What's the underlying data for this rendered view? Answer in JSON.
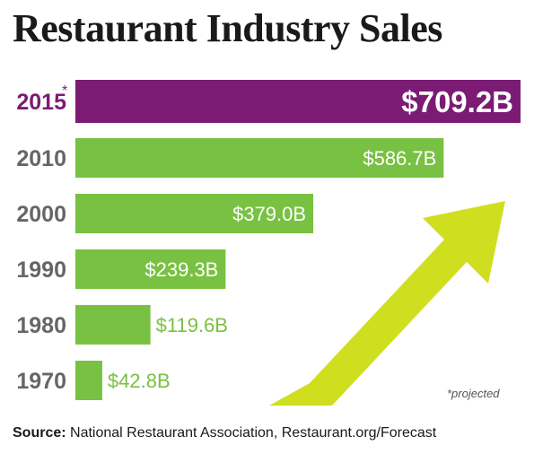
{
  "title": "Restaurant Industry Sales",
  "footnote": "*projected",
  "source": {
    "label": "Source:",
    "text": "National Restaurant Association, Restaurant.org/Forecast"
  },
  "colors": {
    "highlight": "#7b1b74",
    "bar": "#79c142",
    "arrow": "#cfdf20",
    "year_text": "#666666"
  },
  "chart_data": {
    "type": "bar",
    "orientation": "horizontal",
    "categories": [
      "2015",
      "2010",
      "2000",
      "1990",
      "1980",
      "1970"
    ],
    "category_marks": [
      "*",
      "",
      "",
      "",
      "",
      ""
    ],
    "values": [
      709.2,
      586.7,
      379.0,
      239.3,
      119.6,
      42.8
    ],
    "labels": [
      "$709.2B",
      "$586.7B",
      "$379.0B",
      "$239.3B",
      "$119.6B",
      "$42.8B"
    ],
    "highlight": "2015",
    "unit": "billion USD",
    "xlim": [
      0,
      709.2
    ]
  }
}
